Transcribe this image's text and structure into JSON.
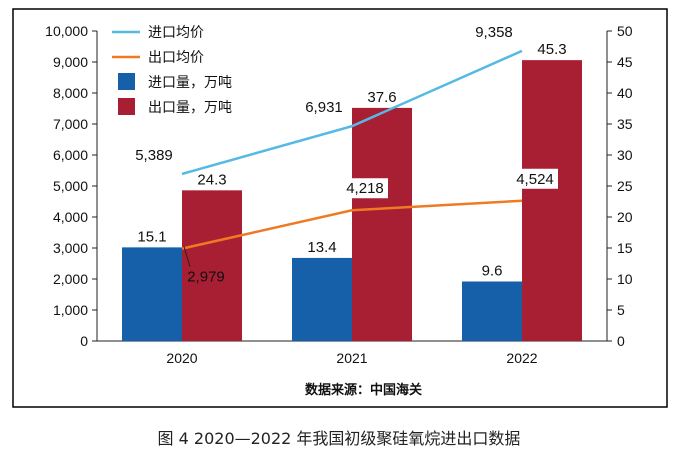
{
  "chart_data": {
    "type": "bar",
    "categories": [
      "2020",
      "2021",
      "2022"
    ],
    "series": [
      {
        "name": "进口量，万吨",
        "kind": "bar",
        "axis": "right",
        "color": "#1560a8",
        "values": [
          15.1,
          13.4,
          9.6
        ],
        "labels": [
          "15.1",
          "13.4",
          "9.6"
        ]
      },
      {
        "name": "出口量，万吨",
        "kind": "bar",
        "axis": "right",
        "color": "#a81e33",
        "values": [
          24.3,
          37.6,
          45.3
        ],
        "labels": [
          "24.3",
          "37.6",
          "45.3"
        ]
      },
      {
        "name": "进口均价",
        "kind": "line",
        "axis": "left",
        "color": "#56b9e4",
        "values": [
          5389,
          6931,
          9358
        ],
        "labels": [
          "5,389",
          "6,931",
          "9,358"
        ]
      },
      {
        "name": "出口均价",
        "kind": "line",
        "axis": "left",
        "color": "#ee7b23",
        "values": [
          2979,
          4218,
          4524
        ],
        "labels": [
          "2,979",
          "4,218",
          "4,524"
        ]
      }
    ],
    "ylim_left": [
      0,
      10000
    ],
    "yticks_left": [
      "0",
      "1,000",
      "2,000",
      "3,000",
      "4,000",
      "5,000",
      "6,000",
      "7,000",
      "8,000",
      "9,000",
      "10,000"
    ],
    "ylim_right": [
      0,
      50
    ],
    "yticks_right": [
      "0",
      "5",
      "10",
      "15",
      "20",
      "25",
      "30",
      "35",
      "40",
      "45",
      "50"
    ],
    "legend_position": "top-left",
    "grid": false
  },
  "source_note": "数据来源：中国海关",
  "caption": "图 4  2020—2022 年我国初级聚硅氧烷进出口数据"
}
